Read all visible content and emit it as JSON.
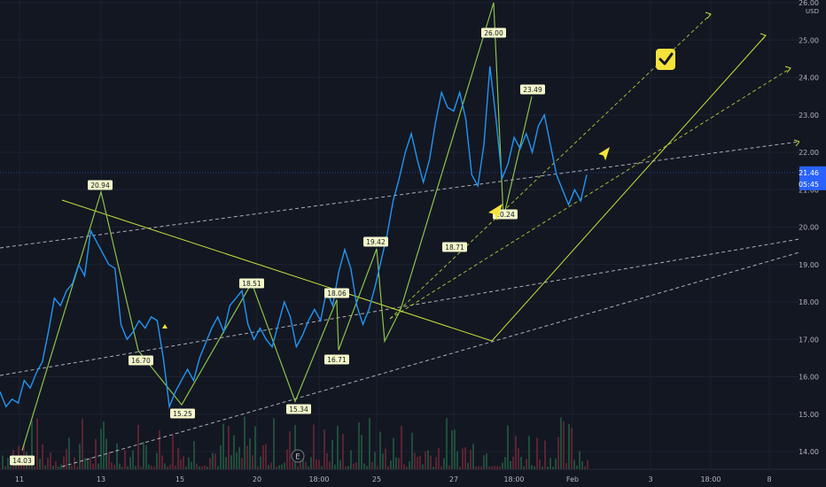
{
  "chart_data": {
    "type": "line",
    "currency": "USD",
    "x_ticks": [
      "11",
      "13",
      "15",
      "20",
      "18:00",
      "25",
      "27",
      "18:00",
      "Feb",
      "3",
      "18:00",
      "8"
    ],
    "y_ticks": [
      "14.00",
      "15.00",
      "16.00",
      "17.00",
      "18.00",
      "19.00",
      "20.00",
      "21.00",
      "22.00",
      "23.00",
      "24.00",
      "25.00",
      "26.00"
    ],
    "ylim": [
      13.7,
      26.2
    ],
    "price_label": "21.46",
    "time_label": "05:45",
    "event_marker": "E",
    "series": [
      {
        "values": [
          15.6,
          15.2,
          15.4,
          15.3,
          15.9,
          15.7,
          16.1,
          16.4,
          17.2,
          18.1,
          17.9,
          18.3,
          18.5,
          19.0,
          18.7,
          19.9,
          19.6,
          19.3,
          19.0,
          18.9,
          17.4,
          17.0,
          17.2,
          17.5,
          17.3,
          17.6,
          17.5,
          16.5,
          15.2,
          15.6,
          15.9,
          16.2,
          15.9,
          16.5,
          16.9,
          17.3,
          17.6,
          17.2,
          17.9,
          18.1,
          18.3,
          17.4,
          17.0,
          17.3,
          17.0,
          16.8,
          17.4,
          18.0,
          17.6,
          16.8,
          17.1,
          17.5,
          17.8,
          17.5,
          18.3,
          17.9,
          18.8,
          19.4,
          18.9,
          17.9,
          17.4,
          17.8,
          18.4,
          19.1,
          19.8,
          20.7,
          21.3,
          22.0,
          22.5,
          21.8,
          21.2,
          21.8,
          22.8,
          23.6,
          23.2,
          23.1,
          23.6,
          22.9,
          21.4,
          21.1,
          22.2,
          24.3,
          22.9,
          21.3,
          21.7,
          22.4,
          22.1,
          22.5,
          22.0,
          22.7,
          23.0,
          22.2,
          21.4,
          21.0,
          20.6,
          21.0,
          20.7,
          21.4
        ]
      }
    ],
    "wave_labels": [
      "14.03",
      "20.94",
      "16.70",
      "15.25",
      "18.51",
      "15.34",
      "18.06",
      "16.71",
      "19.42",
      "18.71",
      "26.00",
      "20.24",
      "23.49"
    ],
    "annotation_icons": [
      "checkmark-badge-icon",
      "cursor-arrow-icon"
    ],
    "colors": {
      "background": "#131722",
      "price_line": "#2196f3",
      "wave_line": "#8bc34a",
      "trend_line": "#c6e23a",
      "channel_line": "#d1d4dc",
      "label_bg": "#f3f6c9",
      "highlight": "#f5e33b",
      "axis_text": "#b2b5be",
      "volume_up": "#1f4d3a",
      "volume_down": "#5a2330"
    }
  }
}
